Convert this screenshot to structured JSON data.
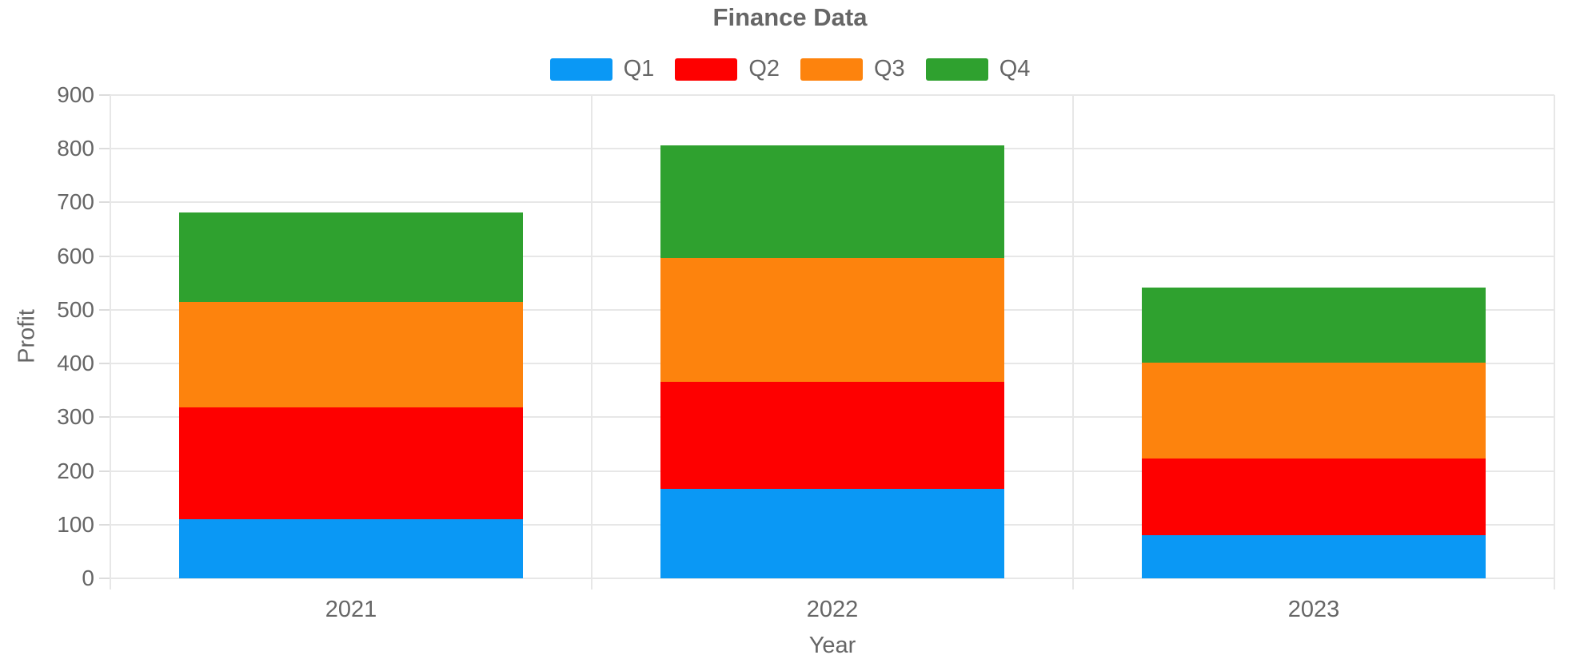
{
  "chart_data": {
    "type": "bar",
    "stacked": true,
    "title": "Finance Data",
    "xlabel": "Year",
    "ylabel": "Profit",
    "categories": [
      "2021",
      "2022",
      "2023"
    ],
    "series": [
      {
        "name": "Q1",
        "color": "#0a98f5",
        "values": [
          110,
          166,
          80
        ]
      },
      {
        "name": "Q2",
        "color": "#fe0000",
        "values": [
          208,
          200,
          143
        ]
      },
      {
        "name": "Q3",
        "color": "#fd830d",
        "values": [
          197,
          230,
          179
        ]
      },
      {
        "name": "Q4",
        "color": "#2fa12f",
        "values": [
          166,
          211,
          140
        ]
      }
    ],
    "totals": [
      681,
      807,
      542
    ],
    "ylim": [
      0,
      900
    ],
    "y_ticks": [
      0,
      100,
      200,
      300,
      400,
      500,
      600,
      700,
      800,
      900
    ],
    "grid": true,
    "legend_position": "top",
    "text_color": "#666666",
    "grid_color": "#e7e7e7"
  }
}
